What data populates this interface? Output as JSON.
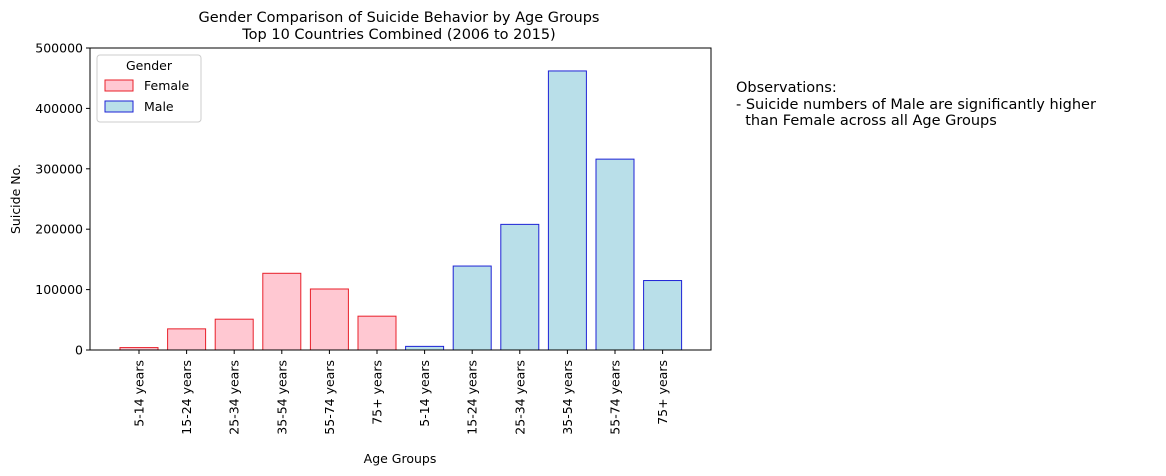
{
  "chart_data": {
    "type": "bar",
    "title": "Gender Comparison of Suicide Behavior by Age Groups",
    "subtitle": "Top 10 Countries Combined (2006 to 2015)",
    "xlabel": "Age Groups",
    "ylabel": "Suicide No.",
    "ylim": [
      0,
      500000
    ],
    "yticks": [
      0,
      100000,
      200000,
      300000,
      400000,
      500000
    ],
    "grid": false,
    "legend": {
      "title": "Gender",
      "placement": "top-left"
    },
    "series": [
      {
        "name": "Female",
        "fill": "#ffc8d2",
        "edge": "#e8202a",
        "categories": [
          "5-14 years",
          "15-24 years",
          "25-34 years",
          "35-54 years",
          "55-74 years",
          "75+ years"
        ],
        "values": [
          4000,
          35000,
          51000,
          127000,
          101000,
          56000
        ]
      },
      {
        "name": "Male",
        "fill": "#b9dfe9",
        "edge": "#1e22d6",
        "categories": [
          "5-14 years",
          "15-24 years",
          "25-34 years",
          "35-54 years",
          "55-74 years",
          "75+ years"
        ],
        "values": [
          6000,
          139000,
          208000,
          462000,
          316000,
          115000
        ]
      }
    ]
  },
  "observations": {
    "heading": "Observations:",
    "line1": "- Suicide numbers of Male are significantly higher",
    "line2": "  than Female across all Age Groups"
  }
}
